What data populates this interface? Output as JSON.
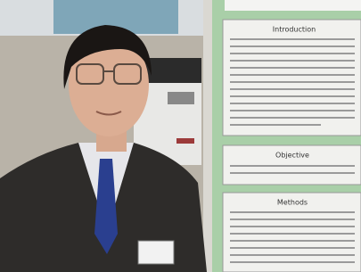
{
  "poster": {
    "sections": [
      {
        "heading": "Introduction"
      },
      {
        "heading": "Objective"
      },
      {
        "heading": "Methods"
      }
    ]
  }
}
